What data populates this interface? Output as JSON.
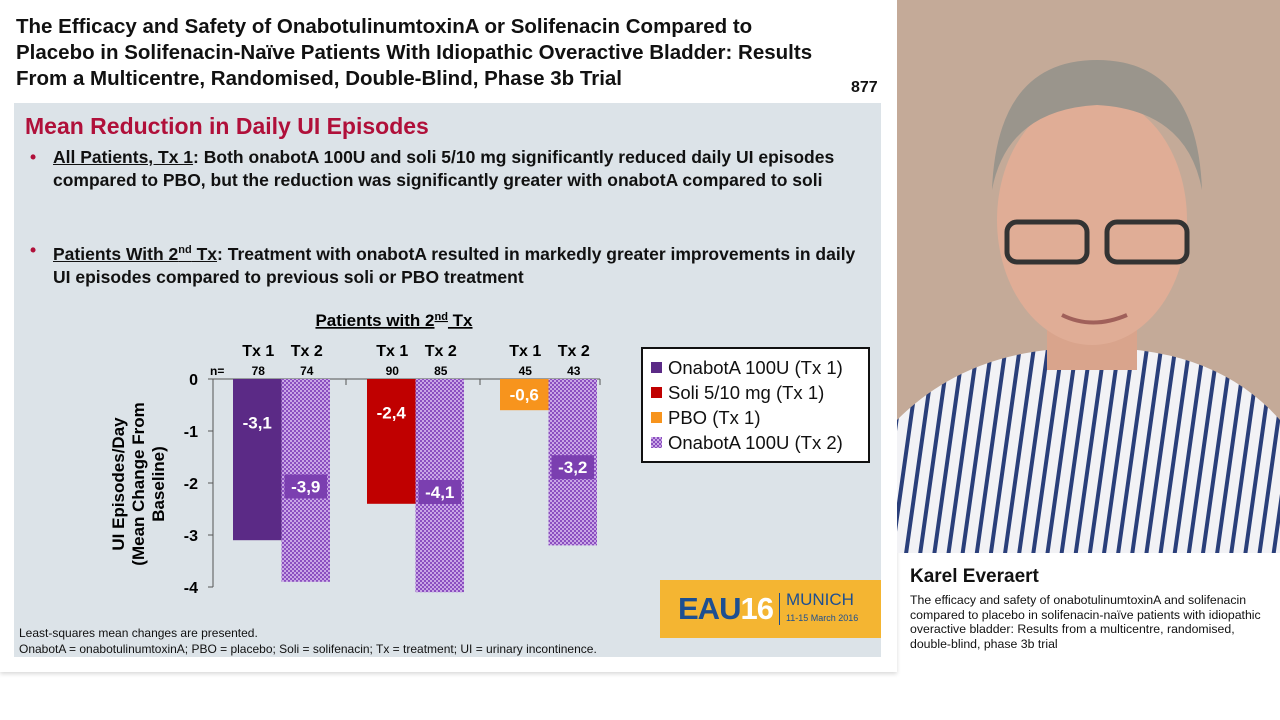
{
  "slide": {
    "title": "The Efficacy and Safety of OnabotulinumtoxinA or Solifenacin Compared to Placebo in Solifenacin-Naïve Patients With Idiopathic Overactive Bladder: Results From a Multicentre, Randomised, Double-Blind, Phase 3b Trial",
    "number": "877",
    "heading": "Mean Reduction in Daily UI Episodes",
    "bullets": [
      {
        "lead": "All Patients, Tx 1",
        "text": ": Both onabotA 100U and soli 5/10 mg significantly reduced daily UI episodes compared to PBO, but the reduction was significantly greater with onabotA compared to soli"
      },
      {
        "lead": "Patients With 2",
        "sup": "nd",
        "lead2": " Tx",
        "text": ": Treatment with onabotA resulted in markedly greater improvements in daily UI episodes compared to previous soli or PBO treatment"
      }
    ],
    "footnotes": [
      "Least-squares mean changes are presented.",
      "OnabotA = onabotulinumtoxinA; PBO = placebo; Soli = solifenacin; Tx = treatment; UI = urinary incontinence."
    ],
    "logo": {
      "text": "EAU16",
      "city": "MUNICH",
      "dates": "11-15 March 2016"
    }
  },
  "speaker": {
    "name": "Karel Everaert",
    "description": "The efficacy and safety of onabotulinumtoxinA and solifenacin compared to placebo in solifenacin-naïve patients with idiopathic overactive bladder: Results from a multicentre, randomised, double-blind, phase 3b trial"
  },
  "chart_data": {
    "type": "bar",
    "title": "Patients with 2nd Tx",
    "title_main": "Patients with 2",
    "title_sup": "nd",
    "title_end": " Tx",
    "ylabel": "UI Episodes/Day (Mean Change From Baseline)",
    "ylabel1": "UI Episodes/Day",
    "ylabel2": "(Mean Change From",
    "ylabel3": "Baseline)",
    "ylim": [
      -4,
      0
    ],
    "yticks": [
      "0",
      "-1",
      "-2",
      "-3",
      "-4"
    ],
    "n_label": "n=",
    "groups": [
      {
        "bars": [
          {
            "label": "Tx 1",
            "n": "78",
            "value": -3.1,
            "value_label": "-3,1",
            "series": 0
          },
          {
            "label": "Tx 2",
            "n": "74",
            "value": -3.9,
            "value_label": "-3,9",
            "series": 3
          }
        ]
      },
      {
        "bars": [
          {
            "label": "Tx 1",
            "n": "90",
            "value": -2.4,
            "value_label": "-2,4",
            "series": 1
          },
          {
            "label": "Tx 2",
            "n": "85",
            "value": -4.1,
            "value_label": "-4,1",
            "series": 3
          }
        ]
      },
      {
        "bars": [
          {
            "label": "Tx 1",
            "n": "45",
            "value": -0.6,
            "value_label": "-0,6",
            "series": 2
          },
          {
            "label": "Tx 2",
            "n": "43",
            "value": -3.2,
            "value_label": "-3,2",
            "series": 3
          }
        ]
      }
    ],
    "series": [
      {
        "name": "OnabotA 100U (Tx 1)",
        "color": "#5b2a86",
        "pattern": "solid"
      },
      {
        "name": "Soli 5/10 mg (Tx 1)",
        "color": "#c00000",
        "pattern": "solid"
      },
      {
        "name": "PBO (Tx 1)",
        "color": "#f7941d",
        "pattern": "solid"
      },
      {
        "name": "OnabotA 100U (Tx 2)",
        "color": "#8b4fc0",
        "pattern": "checkered"
      }
    ],
    "legend_position": "right",
    "grid": false
  }
}
